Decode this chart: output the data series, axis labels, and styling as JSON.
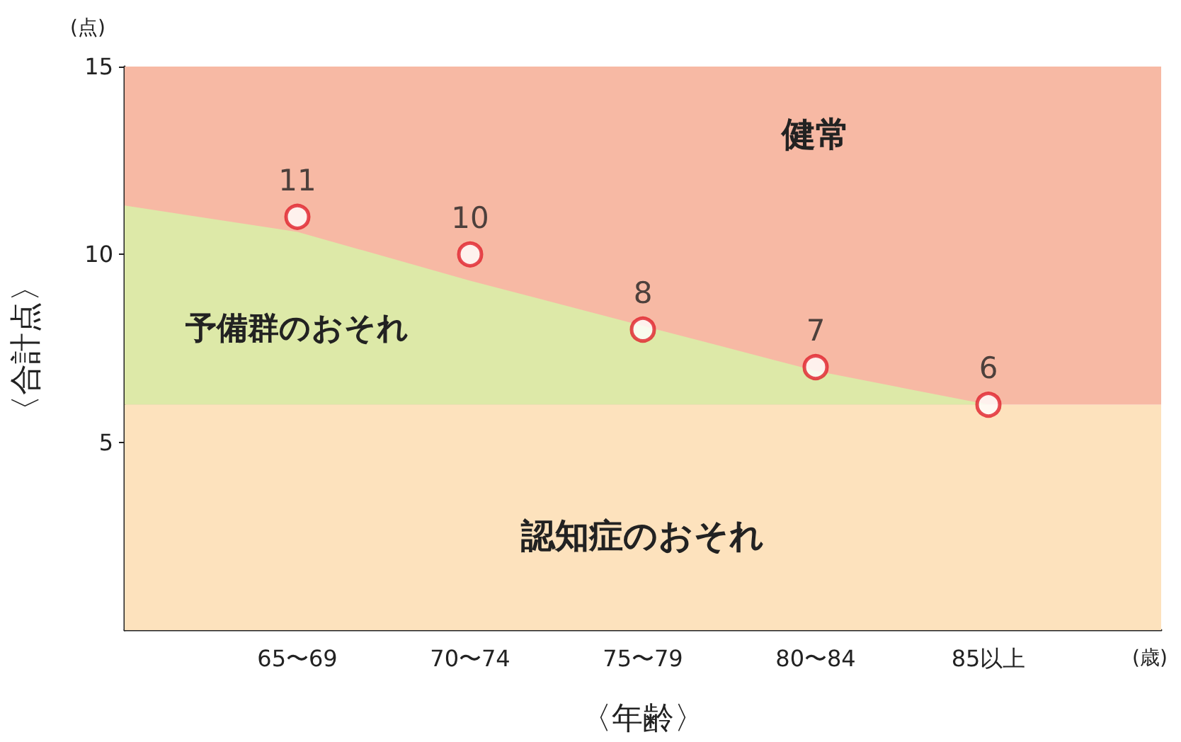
{
  "chart_data": {
    "type": "scatter",
    "xlabel": "〈年齢〉",
    "ylabel": "〈合計点〉",
    "categories": [
      null,
      "65〜69",
      "70〜74",
      "75〜79",
      "80〜84",
      "85以上",
      null
    ],
    "ylim": [
      0,
      15
    ],
    "yticks": [
      5,
      10,
      15
    ],
    "series": [
      {
        "name": "予備群のおそれ",
        "type": "area",
        "color": "#dde9a8",
        "values": [
          11.3,
          10.6,
          9.3,
          8.1,
          6.9,
          6,
          6
        ],
        "marker": "none"
      },
      {
        "color": "#e0202a",
        "values": [
          null,
          11,
          10,
          8,
          7,
          6,
          null
        ],
        "value_labels": [
          null,
          "11",
          "10",
          "8",
          "7",
          "6",
          null
        ]
      }
    ],
    "bands": [
      {
        "axis": "y",
        "from": 0,
        "to": 6,
        "label": "認知症のおそれ",
        "color": "#fde2bd"
      },
      {
        "axis": "y",
        "from": 6,
        "to": 15,
        "label": "健常",
        "color": "#f7b9a4"
      }
    ],
    "annotations": [
      "(点)",
      "(歳)"
    ],
    "marker": "circle"
  }
}
